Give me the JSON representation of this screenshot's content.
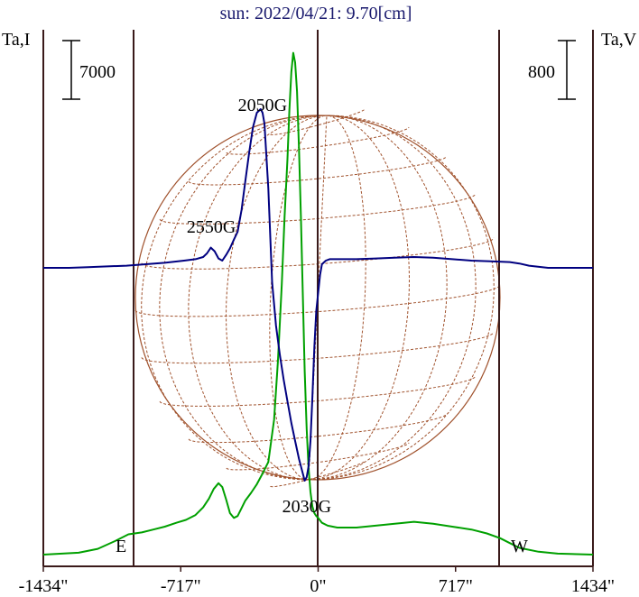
{
  "chart_data": {
    "type": "line",
    "title": "sun: 2022/04/21: 9.70[cm]",
    "left_axis_label": "Ta,I",
    "right_axis_label": "Ta,V",
    "left_scale_label": "7000",
    "right_scale_label": "800",
    "x_ticks": [
      {
        "label": "-1434\"",
        "value": -1434
      },
      {
        "label": "-717\"",
        "value": -717
      },
      {
        "label": "0\"",
        "value": 0
      },
      {
        "label": "717\"",
        "value": 717
      },
      {
        "label": "1434\"",
        "value": 1434
      }
    ],
    "xlim": [
      -1434,
      1434
    ],
    "limb_markers": {
      "east": "E",
      "west": "W",
      "x_values": [
        -980,
        980
      ]
    },
    "annotations": [
      {
        "text": "2050G",
        "x": -290
      },
      {
        "text": "2550G",
        "x": -520
      },
      {
        "text": "2030G",
        "x": -60
      }
    ],
    "colors": {
      "stokes_i": "#00a000",
      "stokes_v": "#000080",
      "grid_disk": "#a0522d",
      "frame": "#3a1a1a"
    },
    "series": [
      {
        "name": "Ta,I",
        "color": "#00a000",
        "x": [
          -1434,
          -1250,
          -1150,
          -1060,
          -990,
          -920,
          -860,
          -800,
          -740,
          -690,
          -640,
          -600,
          -570,
          -545,
          -520,
          -500,
          -480,
          -460,
          -440,
          -420,
          -400,
          -380,
          -350,
          -320,
          -290,
          -260,
          -230,
          -210,
          -190,
          -175,
          -160,
          -150,
          -140,
          -130,
          -120,
          -110,
          -100,
          -90,
          -80,
          -70,
          -60,
          -50,
          -40,
          -30,
          -20,
          -10,
          0,
          20,
          50,
          100,
          200,
          300,
          400,
          500,
          600,
          700,
          800,
          880,
          950,
          1000,
          1050,
          1150,
          1250,
          1434
        ],
        "y": [
          0.0,
          0.02,
          0.06,
          0.14,
          0.21,
          0.23,
          0.26,
          0.29,
          0.33,
          0.36,
          0.41,
          0.49,
          0.58,
          0.68,
          0.74,
          0.7,
          0.57,
          0.43,
          0.38,
          0.4,
          0.48,
          0.56,
          0.64,
          0.73,
          0.84,
          0.96,
          1.4,
          2.0,
          2.8,
          3.5,
          4.1,
          4.6,
          5.0,
          5.2,
          5.1,
          4.8,
          4.2,
          3.5,
          2.7,
          1.9,
          1.3,
          0.9,
          0.65,
          0.5,
          0.43,
          0.4,
          0.38,
          0.33,
          0.3,
          0.28,
          0.28,
          0.3,
          0.32,
          0.34,
          0.32,
          0.29,
          0.26,
          0.22,
          0.17,
          0.12,
          0.07,
          0.03,
          0.01,
          0.0
        ]
      },
      {
        "name": "Ta,V",
        "color": "#000080",
        "x": [
          -1434,
          -1300,
          -1200,
          -1100,
          -1000,
          -900,
          -800,
          -700,
          -640,
          -600,
          -580,
          -560,
          -540,
          -520,
          -500,
          -480,
          -460,
          -440,
          -420,
          -400,
          -380,
          -360,
          -340,
          -320,
          -300,
          -290,
          -280,
          -260,
          -240,
          -220,
          -200,
          -180,
          -160,
          -140,
          -120,
          -100,
          -80,
          -70,
          -60,
          -50,
          -40,
          -30,
          -20,
          -10,
          0,
          10,
          20,
          40,
          60,
          100,
          200,
          300,
          400,
          500,
          600,
          700,
          800,
          900,
          1000,
          1050,
          1100,
          1200,
          1300,
          1434
        ],
        "y": [
          0.0,
          0.0,
          0.01,
          0.02,
          0.03,
          0.05,
          0.07,
          0.1,
          0.12,
          0.15,
          0.2,
          0.28,
          0.23,
          0.13,
          0.1,
          0.18,
          0.27,
          0.39,
          0.5,
          0.8,
          1.2,
          1.6,
          1.95,
          2.15,
          2.2,
          2.15,
          2.0,
          1.1,
          -0.2,
          -0.8,
          -1.2,
          -1.55,
          -1.85,
          -2.15,
          -2.4,
          -2.65,
          -2.85,
          -2.95,
          -2.9,
          -2.75,
          -2.4,
          -1.8,
          -1.1,
          -0.6,
          -0.35,
          -0.1,
          0.05,
          0.1,
          0.12,
          0.12,
          0.12,
          0.13,
          0.14,
          0.15,
          0.14,
          0.12,
          0.1,
          0.09,
          0.08,
          0.06,
          0.03,
          0.0,
          0.0,
          0.0
        ]
      }
    ]
  }
}
